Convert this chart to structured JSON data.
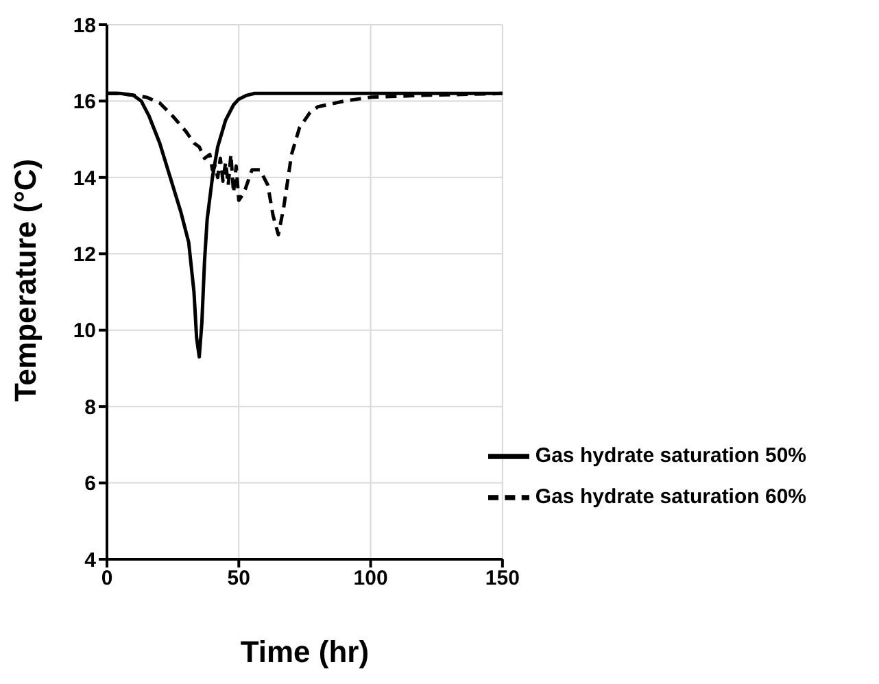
{
  "chart_data": {
    "type": "line",
    "xlabel": "Time (hr)",
    "ylabel": "Temperature (°C)",
    "xlim": [
      0,
      150
    ],
    "xticks": [
      0,
      50,
      100,
      150
    ],
    "ylim": [
      4,
      18
    ],
    "yticks": [
      4,
      6,
      8,
      10,
      12,
      14,
      16,
      18
    ],
    "grid": true,
    "legend": "bottom right",
    "marker": "none",
    "series": [
      {
        "name": "Gas hydrate saturation 50%",
        "color": "#000000",
        "line_style": "solid",
        "x": [
          0,
          5,
          10,
          13,
          16,
          20,
          24,
          28,
          31,
          33,
          34,
          35,
          36,
          37,
          38,
          40,
          42,
          45,
          48,
          50,
          53,
          56,
          60,
          70,
          80,
          100,
          120,
          150
        ],
        "values": [
          16.2,
          16.2,
          16.15,
          16.0,
          15.6,
          14.9,
          14.0,
          13.1,
          12.3,
          11.0,
          9.8,
          9.3,
          10.2,
          11.8,
          12.9,
          14.0,
          14.8,
          15.5,
          15.9,
          16.05,
          16.15,
          16.2,
          16.2,
          16.2,
          16.2,
          16.2,
          16.2,
          16.2
        ]
      },
      {
        "name": "Gas hydrate saturation 60%",
        "color": "#000000",
        "line_style": "dashed",
        "x": [
          0,
          5,
          10,
          15,
          20,
          25,
          30,
          33,
          35,
          37,
          39,
          40,
          41,
          42,
          43,
          44,
          45,
          46,
          47,
          48,
          49,
          50,
          52,
          55,
          58,
          61,
          63,
          65,
          67,
          70,
          73,
          77,
          80,
          90,
          100,
          120,
          150
        ],
        "values": [
          16.2,
          16.2,
          16.15,
          16.1,
          15.95,
          15.6,
          15.2,
          14.9,
          14.8,
          14.5,
          14.6,
          14.2,
          14.3,
          14.0,
          14.5,
          13.9,
          14.4,
          13.8,
          14.6,
          13.6,
          14.3,
          13.4,
          13.6,
          14.2,
          14.2,
          13.8,
          13.0,
          12.5,
          13.2,
          14.6,
          15.3,
          15.7,
          15.85,
          16.0,
          16.1,
          16.15,
          16.2
        ]
      }
    ]
  }
}
